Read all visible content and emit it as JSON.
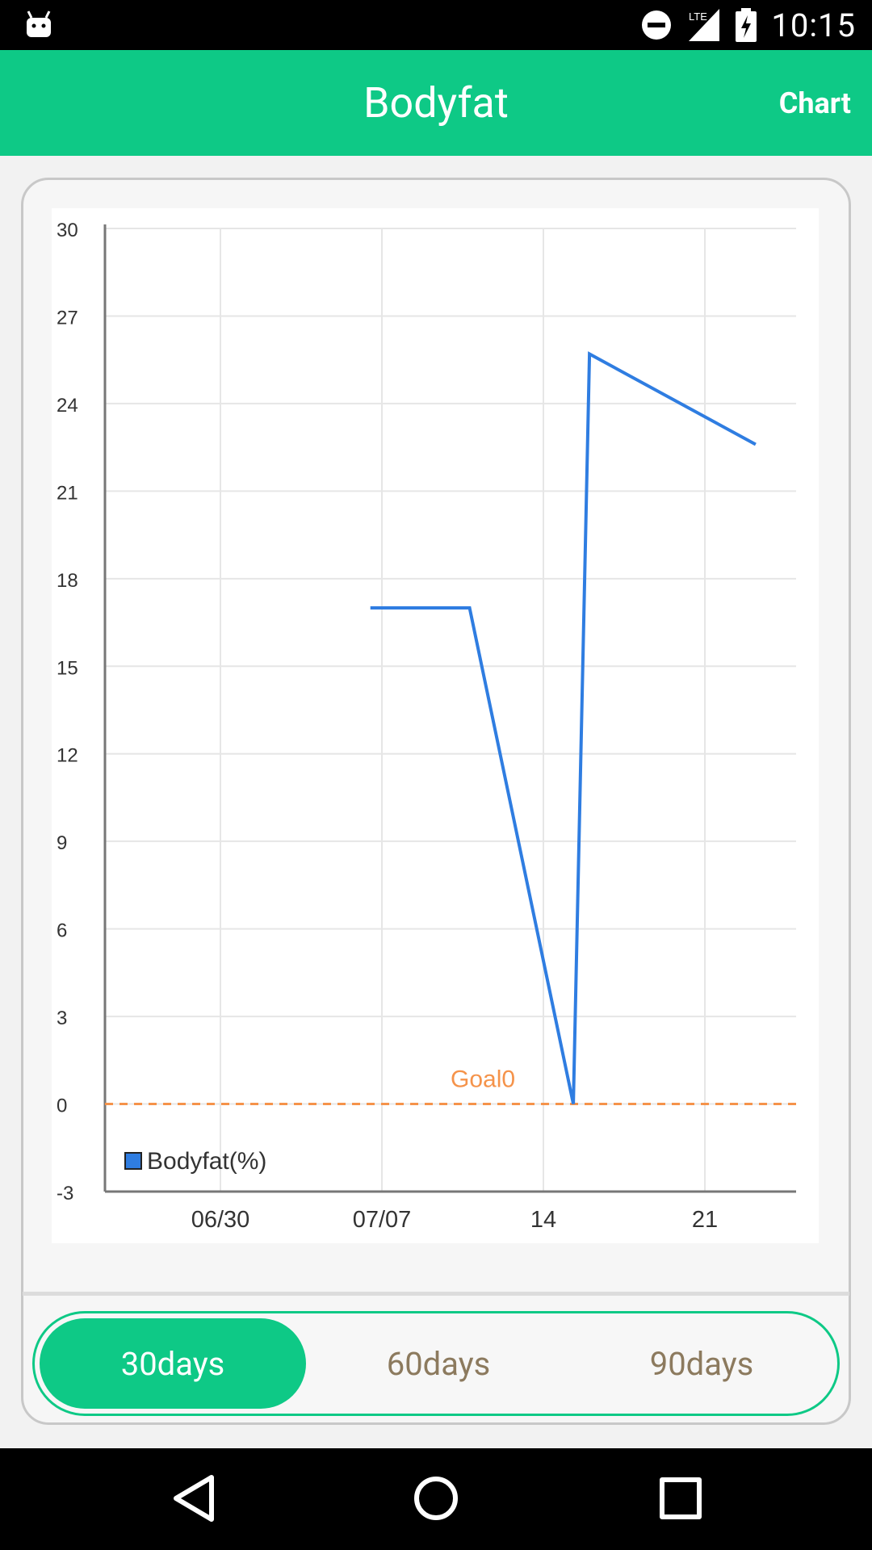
{
  "status_bar": {
    "time": "10:15",
    "network": "LTE",
    "icons": [
      "android-icon",
      "do-not-disturb-icon",
      "lte-signal-icon",
      "battery-charging-icon"
    ]
  },
  "app_bar": {
    "title": "Bodyfat",
    "action_label": "Chart"
  },
  "chart_data": {
    "type": "line",
    "x_tick_labels": [
      "06/30",
      "07/07",
      "14",
      "21"
    ],
    "y_ticks": [
      30,
      27,
      24,
      21,
      18,
      15,
      12,
      9,
      6,
      3,
      0,
      -3
    ],
    "ylim": [
      -3,
      30
    ],
    "grid": true,
    "series": [
      {
        "name": "Bodyfat(%)",
        "color": "#2f7de1",
        "points": [
          {
            "day": 6.5,
            "y": 17.0
          },
          {
            "day": 10.8,
            "y": 17.0
          },
          {
            "day": 15.3,
            "y": 0.0
          },
          {
            "day": 16.0,
            "y": 25.7
          },
          {
            "day": 23.2,
            "y": 22.6
          }
        ]
      }
    ],
    "goal": {
      "label": "Goal0",
      "value": 0,
      "color": "#f5934a"
    },
    "legend": {
      "label": "Bodyfat(%)",
      "position": "bottom-left"
    }
  },
  "range_selector": {
    "options": [
      "30days",
      "60days",
      "90days"
    ],
    "selected": "30days"
  },
  "nav_bar": {
    "icons": [
      "back-icon",
      "home-icon",
      "recents-icon"
    ]
  }
}
